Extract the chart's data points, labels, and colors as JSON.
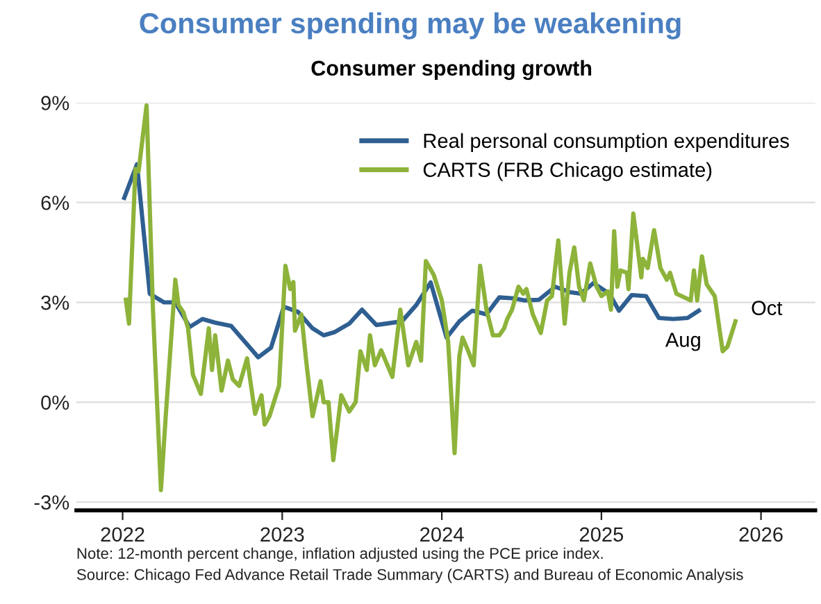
{
  "chart_data": {
    "type": "line",
    "title": "Consumer spending may be weakening",
    "subtitle": "Consumer spending growth",
    "series": [
      {
        "name": "Real personal consumption expenditures",
        "color": "#2f5f91",
        "x": [
          2022.01,
          2022.09,
          2022.17,
          2022.26,
          2022.33,
          2022.42,
          2022.5,
          2022.58,
          2022.68,
          2022.85,
          2022.93,
          2023.01,
          2023.1,
          2023.19,
          2023.26,
          2023.33,
          2023.42,
          2023.5,
          2023.59,
          2023.75,
          2023.84,
          2023.93,
          2024.03,
          2024.11,
          2024.19,
          2024.28,
          2024.36,
          2024.45,
          2024.52,
          2024.61,
          2024.71,
          2024.8,
          2024.87,
          2024.95,
          2025.05,
          2025.11,
          2025.19,
          2025.28,
          2025.36,
          2025.45,
          2025.54,
          2025.61
        ],
        "values": [
          6.14,
          7.15,
          3.26,
          3.0,
          3.0,
          2.26,
          2.5,
          2.39,
          2.29,
          1.35,
          1.64,
          2.87,
          2.71,
          2.22,
          2.01,
          2.11,
          2.36,
          2.78,
          2.32,
          2.43,
          2.92,
          3.6,
          1.94,
          2.43,
          2.75,
          2.64,
          3.15,
          3.12,
          3.06,
          3.08,
          3.47,
          3.31,
          3.26,
          3.58,
          3.26,
          2.75,
          3.22,
          3.19,
          2.53,
          2.5,
          2.53,
          2.75
        ]
      },
      {
        "name": "CARTS (FRB Chicago estimate)",
        "color": "#8db33a",
        "x": [
          2022.02,
          2022.04,
          2022.08,
          2022.1,
          2022.15,
          2022.19,
          2022.24,
          2022.27,
          2022.33,
          2022.35,
          2022.38,
          2022.41,
          2022.44,
          2022.49,
          2022.54,
          2022.56,
          2022.58,
          2022.62,
          2022.66,
          2022.69,
          2022.73,
          2022.78,
          2022.83,
          2022.87,
          2022.89,
          2022.92,
          2022.98,
          2023.02,
          2023.05,
          2023.07,
          2023.08,
          2023.12,
          2023.15,
          2023.19,
          2023.24,
          2023.26,
          2023.29,
          2023.32,
          2023.37,
          2023.42,
          2023.46,
          2023.49,
          2023.53,
          2023.55,
          2023.58,
          2023.62,
          2023.69,
          2023.74,
          2023.79,
          2023.84,
          2023.87,
          2023.9,
          2023.95,
          2024.0,
          2024.04,
          2024.08,
          2024.11,
          2024.13,
          2024.16,
          2024.2,
          2024.24,
          2024.28,
          2024.32,
          2024.36,
          2024.39,
          2024.41,
          2024.44,
          2024.48,
          2024.51,
          2024.53,
          2024.57,
          2024.62,
          2024.66,
          2024.69,
          2024.73,
          2024.77,
          2024.8,
          2024.83,
          2024.86,
          2024.89,
          2024.93,
          2024.97,
          2025.0,
          2025.04,
          2025.06,
          2025.08,
          2025.1,
          2025.12,
          2025.16,
          2025.17,
          2025.2,
          2025.25,
          2025.26,
          2025.29,
          2025.33,
          2025.37,
          2025.41,
          2025.43,
          2025.47,
          2025.56,
          2025.58,
          2025.6,
          2025.63,
          2025.66,
          2025.71,
          2025.76,
          2025.79,
          2025.84
        ],
        "values": [
          3.08,
          2.36,
          7.01,
          6.94,
          8.92,
          2.78,
          -2.64,
          -0.42,
          3.68,
          2.92,
          2.71,
          2.22,
          0.83,
          0.25,
          2.22,
          0.97,
          2.01,
          0.35,
          1.25,
          0.69,
          0.49,
          1.32,
          -0.35,
          0.21,
          -0.67,
          -0.42,
          0.49,
          4.1,
          3.4,
          3.61,
          2.15,
          2.64,
          1.25,
          -0.42,
          0.63,
          0.0,
          0.0,
          -1.74,
          0.21,
          -0.28,
          0.0,
          1.53,
          0.97,
          2.01,
          1.11,
          1.56,
          0.76,
          2.78,
          1.11,
          1.81,
          1.25,
          4.24,
          3.82,
          3.06,
          1.81,
          -1.53,
          1.39,
          1.94,
          1.6,
          1.11,
          4.1,
          2.78,
          2.01,
          2.01,
          2.22,
          2.5,
          2.78,
          3.47,
          3.26,
          3.4,
          2.64,
          2.08,
          3.06,
          3.19,
          4.86,
          2.36,
          3.89,
          4.65,
          3.47,
          3.06,
          4.17,
          3.47,
          3.19,
          3.33,
          2.78,
          5.14,
          3.47,
          3.96,
          3.89,
          3.4,
          5.67,
          3.75,
          4.31,
          4.03,
          5.17,
          4.03,
          3.68,
          3.89,
          3.26,
          3.06,
          3.96,
          3.06,
          4.38,
          3.54,
          3.19,
          1.53,
          1.67,
          2.43
        ]
      }
    ],
    "xlim": [
      2021.71,
      2026.34
    ],
    "xticks": [
      2022,
      2023,
      2024,
      2025,
      2026
    ],
    "ylim": [
      -3.25,
      9
    ],
    "yticks": [
      {
        "value": -3,
        "label": "-3%"
      },
      {
        "value": 0,
        "label": "0%"
      },
      {
        "value": 3,
        "label": "3%"
      },
      {
        "value": 6,
        "label": "6%"
      },
      {
        "value": 9,
        "label": "9%"
      }
    ],
    "grid": "y",
    "legend": "top right",
    "marker": "none",
    "line_style": "solid",
    "annotations": [
      {
        "text": "Aug",
        "x": 2025.61,
        "y": 2.75
      },
      {
        "text": "Oct",
        "x": 2025.84,
        "y": 2.43
      },
      "Note: 12-month percent change, inflation adjusted using the PCE price index.",
      "Source: Chicago Fed Advance Retail Trade Summary (CARTS) and Bureau of Economic Analysis"
    ]
  }
}
